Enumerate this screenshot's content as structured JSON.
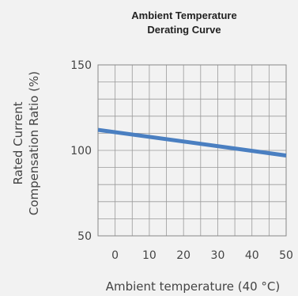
{
  "chart_data": {
    "type": "line",
    "title": [
      "Ambient Temperature",
      "Derating Curve"
    ],
    "xlabel": "Ambient temperature (40 °C)",
    "ylabel": [
      "Rated Current",
      "Compensation Ratio (%)"
    ],
    "xlim": [
      -5,
      50
    ],
    "ylim": [
      50,
      150
    ],
    "x_ticks": [
      0,
      10,
      20,
      30,
      40,
      50
    ],
    "x_tick_labels": [
      "0",
      "10",
      "20",
      "30",
      "40",
      "50"
    ],
    "y_ticks": [
      50,
      100,
      150
    ],
    "y_tick_labels": [
      "50",
      "100",
      "150"
    ],
    "grid": true,
    "series": [
      {
        "x": [
          -5,
          50
        ],
        "y": [
          112,
          97
        ],
        "color": "#4a7fc1"
      }
    ]
  }
}
